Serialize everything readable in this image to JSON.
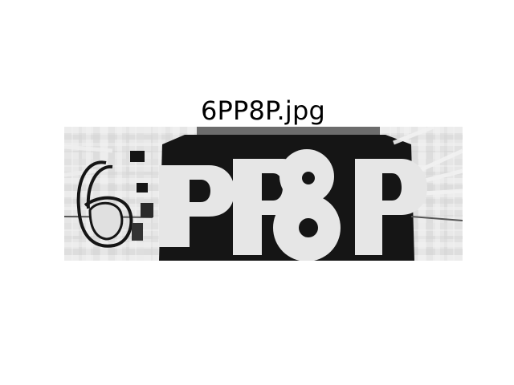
{
  "figure": {
    "title": "6PP8P.jpg"
  },
  "image": {
    "text": "6PP8P",
    "colors": {
      "light": "#e4e4e4",
      "dark": "#151515",
      "mid": "#6c6c6c"
    }
  }
}
